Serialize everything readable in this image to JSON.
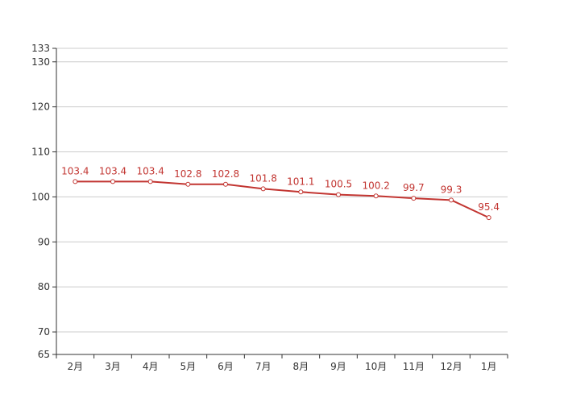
{
  "chart_data": {
    "type": "line",
    "title": "",
    "xlabel": "",
    "ylabel": "",
    "categories": [
      "2月",
      "3月",
      "4月",
      "5月",
      "6月",
      "7月",
      "8月",
      "9月",
      "10月",
      "11月",
      "12月",
      "1月"
    ],
    "series": [
      {
        "values": [
          103.4,
          103.4,
          103.4,
          102.8,
          102.8,
          101.8,
          101.1,
          100.5,
          100.2,
          99.7,
          99.3,
          95.4
        ],
        "color": "#c23531"
      }
    ],
    "data_labels": [
      "103.4",
      "103.4",
      "103.4",
      "102.8",
      "102.8",
      "101.8",
      "101.1",
      "100.5",
      "100.2",
      "99.7",
      "99.3",
      "95.4"
    ],
    "ylim": [
      65,
      133
    ],
    "yticks": [
      65,
      70,
      80,
      90,
      100,
      110,
      120,
      130,
      133
    ],
    "ytick_labels": [
      "65",
      "70",
      "80",
      "90",
      "100",
      "110",
      "120",
      "130",
      "133"
    ],
    "grid": true,
    "legend": "none"
  }
}
